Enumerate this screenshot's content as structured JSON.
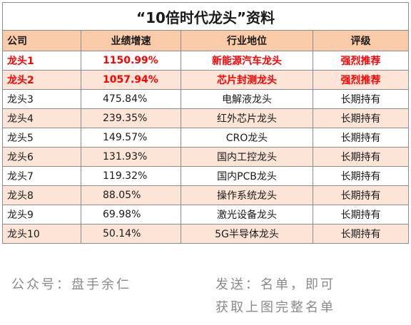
{
  "title": "“10倍时代龙头”资料",
  "columns": [
    "公司",
    "业绩增速",
    "行业地位",
    "评级"
  ],
  "rows": [
    {
      "company": "龙头1",
      "growth": "1150.99%",
      "position": "新能源汽车龙头",
      "rating": "强烈推荐",
      "highlight": true
    },
    {
      "company": "龙头2",
      "growth": "1057.94%",
      "position": "芯片封测龙头",
      "rating": "强烈推荐",
      "highlight": true
    },
    {
      "company": "龙头3",
      "growth": "475.84%",
      "position": "电解液龙头",
      "rating": "长期持有",
      "highlight": false
    },
    {
      "company": "龙头4",
      "growth": "239.35%",
      "position": "红外芯片龙头",
      "rating": "长期持有",
      "highlight": false
    },
    {
      "company": "龙头5",
      "growth": "149.57%",
      "position": "CRO龙头",
      "rating": "长期持有",
      "highlight": false
    },
    {
      "company": "龙头6",
      "growth": "131.93%",
      "position": "国内工控龙头",
      "rating": "长期持有",
      "highlight": false
    },
    {
      "company": "龙头7",
      "growth": "119.32%",
      "position": "国内PCB龙头",
      "rating": "长期持有",
      "highlight": false
    },
    {
      "company": "龙头8",
      "growth": "88.05%",
      "position": "操作系统龙头",
      "rating": "长期持有",
      "highlight": false
    },
    {
      "company": "龙头9",
      "growth": "69.98%",
      "position": "激光设备龙头",
      "rating": "长期持有",
      "highlight": false
    },
    {
      "company": "龙头10",
      "growth": "50.14%",
      "position": "5G半导体龙头",
      "rating": "长期持有",
      "highlight": false
    }
  ],
  "footer": {
    "account": "公众号：盘手余仁",
    "instruction_line1": "发送：名单，即可",
    "instruction_line2": "获取上图完整名单"
  },
  "colors": {
    "header_bg": "#f9cba8",
    "stripe_bg": "#fce4d6",
    "highlight_text": "#ff0000",
    "footer_text": "#8a8a8a"
  }
}
